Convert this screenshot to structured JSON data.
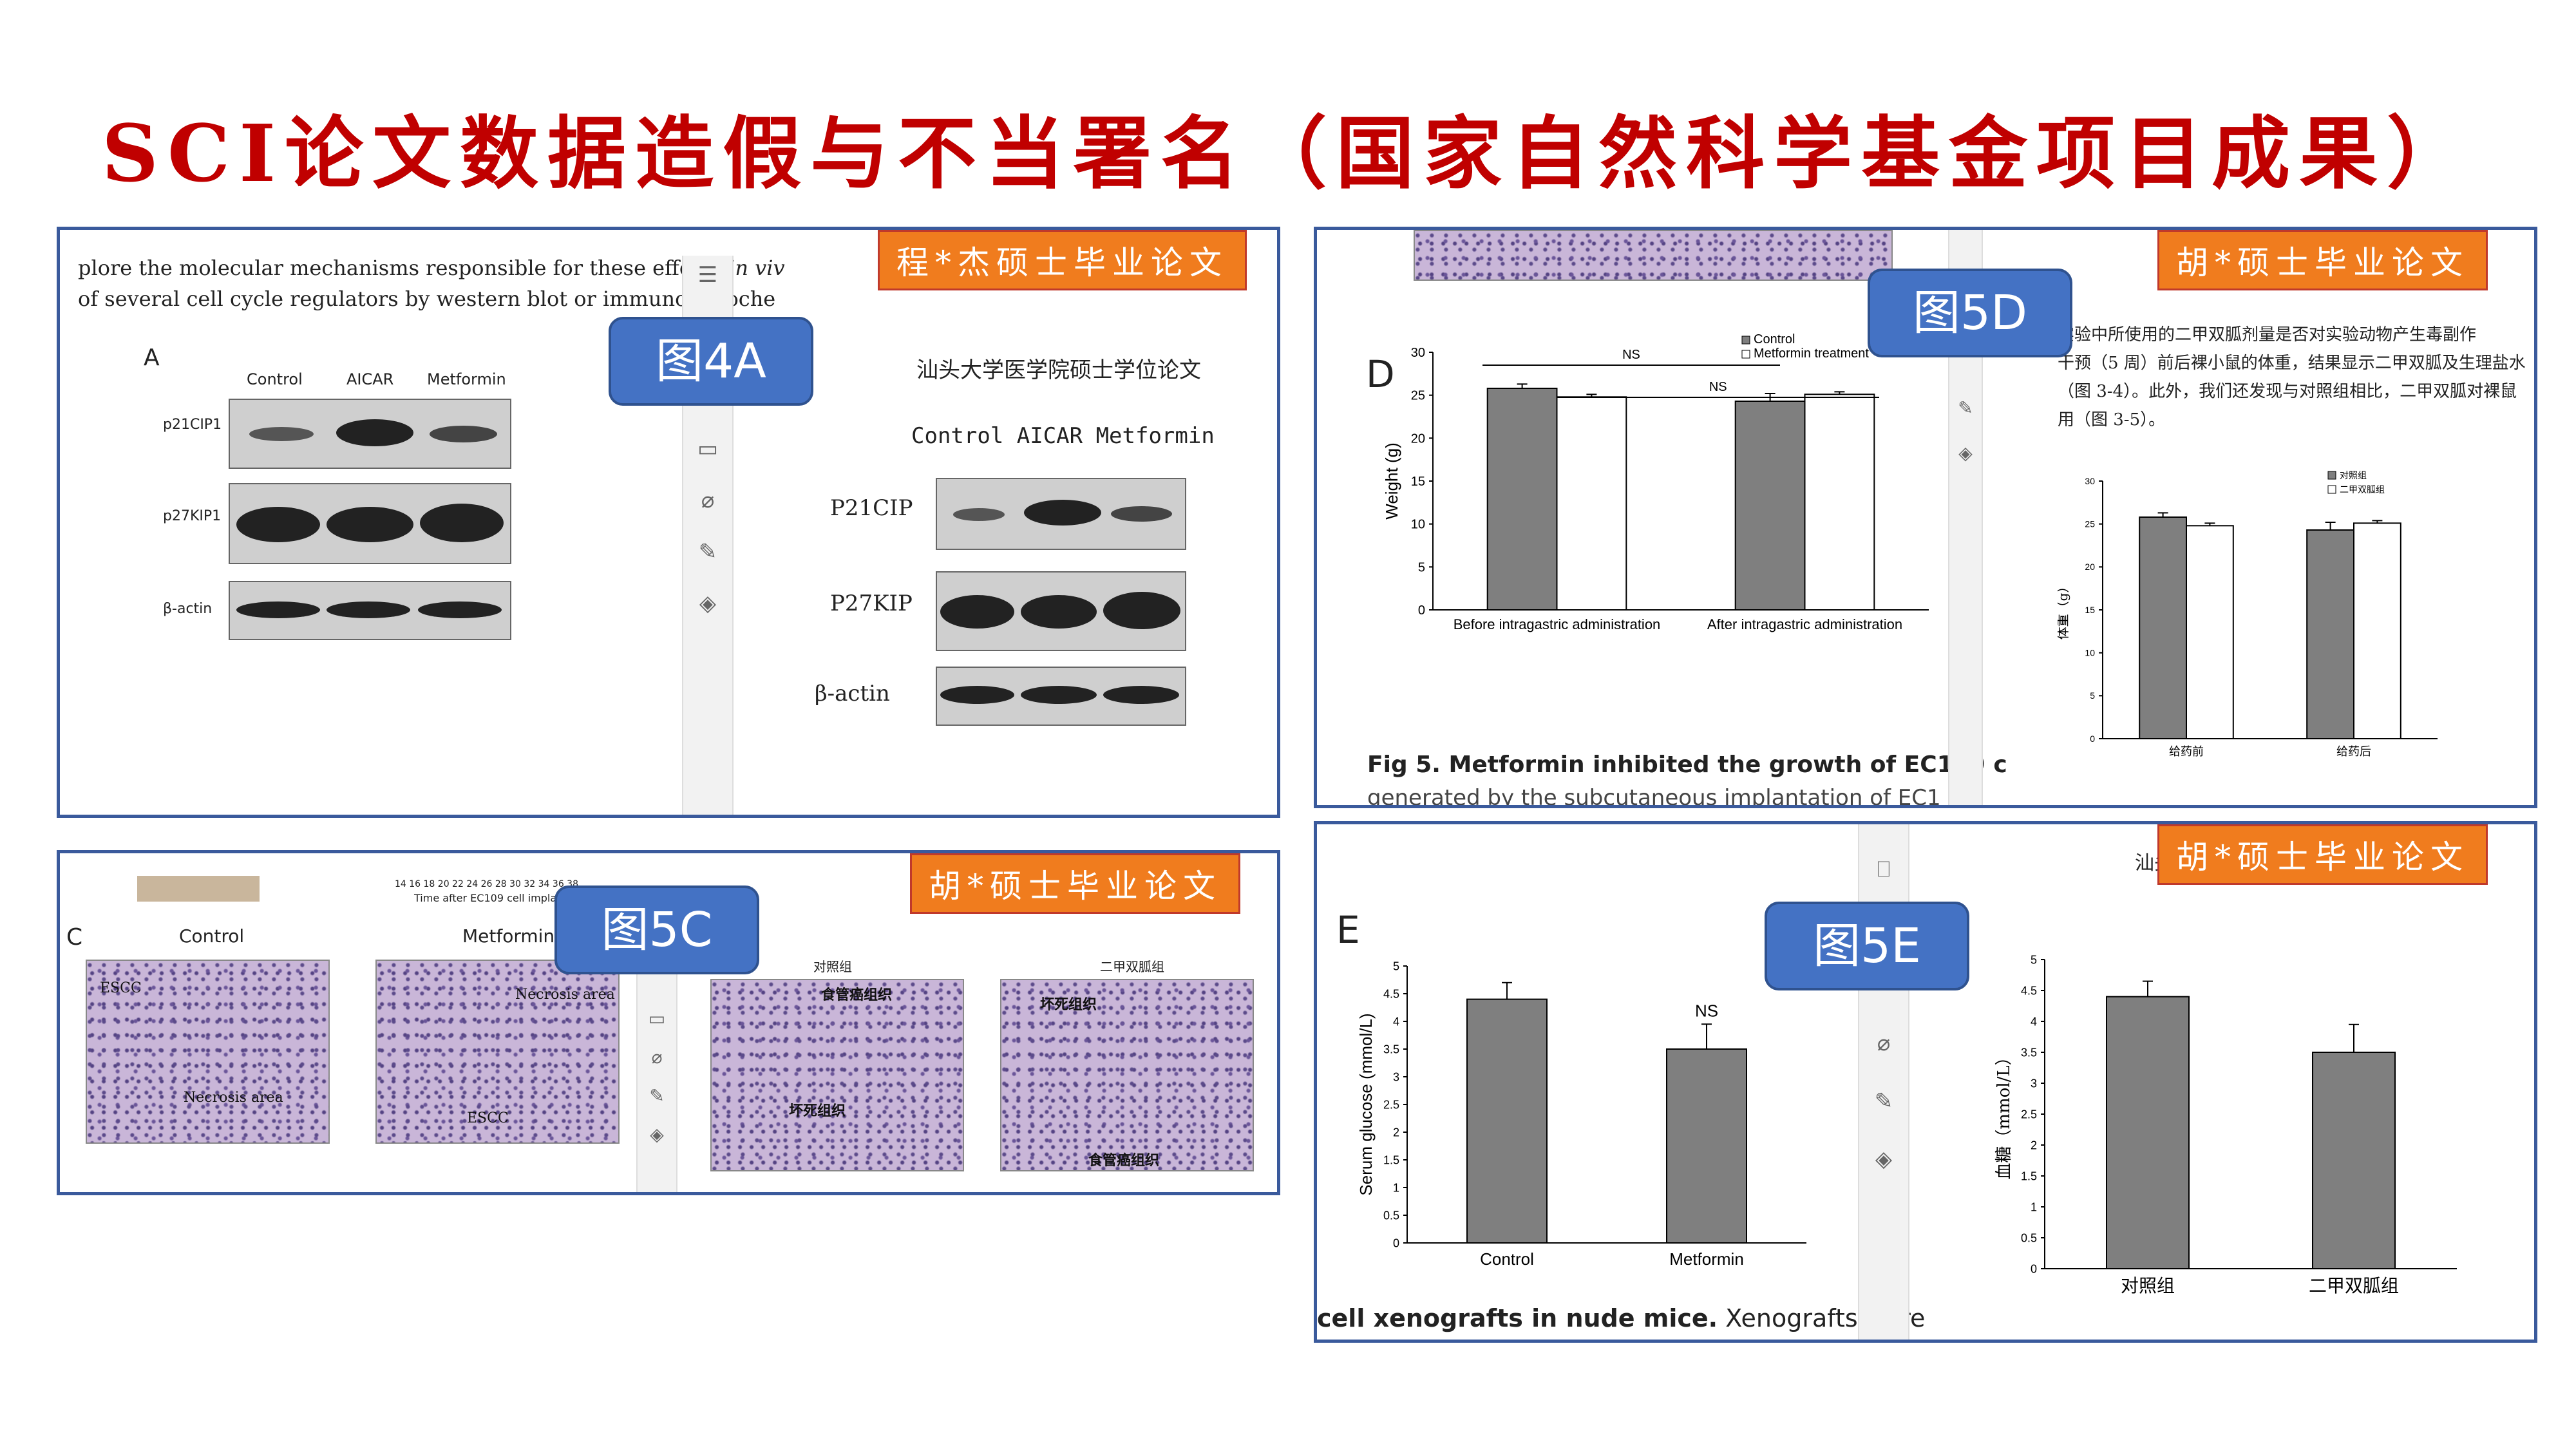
{
  "title": "SCI论文数据造假与不当署名（国家自然科学基金项目成果）",
  "colors": {
    "title": "#c00000",
    "panel_border": "#3a5a9c",
    "tag": "#f07c1e",
    "callout": "#4472c4",
    "bar_control": "#7f7f7f"
  },
  "panel_4a": {
    "text_line1_a": "plore the molecular mechanisms responsible for these effects ",
    "text_line1_b": "in viv",
    "text_line2": "of several cell cycle regulators by western blot or immunohistoche",
    "panel_letter": "A",
    "cols": [
      "Control",
      "AICAR",
      "Metformin"
    ],
    "rows": [
      "p21CIP1",
      "p27KIP1",
      "β-actin"
    ],
    "callout": "图4A",
    "tag": "程*杰硕士毕业论文",
    "thesis_header": "汕头大学医学院硕士学位论文",
    "thesis_cols": "Control AICAR Metformin",
    "thesis_rows": [
      "P21CIP",
      "P27KIP",
      "β-actin"
    ]
  },
  "panel_5d": {
    "panel_letter": "D",
    "callout": "图5D",
    "tag": "胡*硕士毕业论文",
    "caption": "Fig 5.  Metformin inhibited the growth of EC109 c",
    "caption2": "generated by the subcutaneous implantation of EC1",
    "thesis_text": [
      "实验中所使用的二甲双胍剂量是否对实验动物产生毒副作",
      "干预（5 周）前后裸小鼠的体重，结果显示二甲双胍及生理盐水",
      "（图 3-4）。此外，我们还发现与对照组相比，二甲双胍对裸鼠",
      "用（图 3-5）。"
    ]
  },
  "panel_5c": {
    "time_ticks": "14 16 18 20 22 24 26 28 30 32 34 36 38",
    "time_label": "Time after EC109 cell implanta",
    "panel_letter": "C",
    "cols": [
      "Control",
      "Metformin"
    ],
    "labels_left": [
      "ESCC",
      "Necrosis area",
      "Necrosis area",
      "ESCC"
    ],
    "thesis_cols": [
      "对照组",
      "二甲双胍组"
    ],
    "thesis_labels": [
      "食管癌组织",
      "坏死组织",
      "坏死组织",
      "食管癌组织"
    ],
    "callout": "图5C",
    "tag": "胡*硕士毕业论文"
  },
  "panel_5e": {
    "panel_letter": "E",
    "callout": "图5E",
    "tag": "胡*硕士毕业论文",
    "caption_bold": "cell xenografts in nude mice.",
    "caption_rest": " Xenografts were",
    "thesis_header": "汕头"
  },
  "chart_data": [
    {
      "type": "bar",
      "categories": [
        "Before intragastric administration",
        "After intragastric administration"
      ],
      "series": [
        {
          "name": "Control",
          "values": [
            25.8,
            24.3
          ],
          "errors": [
            0.5,
            0.9
          ]
        },
        {
          "name": "Metformin treatment",
          "values": [
            24.8,
            25.1
          ],
          "errors": [
            0.3,
            0.3
          ]
        }
      ],
      "ylabel": "Weight (g)",
      "ylim": [
        0,
        30
      ],
      "yticks": [
        0,
        5,
        10,
        15,
        20,
        25,
        30
      ],
      "annotations": [
        "NS",
        "NS"
      ],
      "legend": "top-right"
    },
    {
      "type": "bar",
      "categories": [
        "给药前",
        "给药后"
      ],
      "series": [
        {
          "name": "对照组",
          "values": [
            25.8,
            24.3
          ],
          "errors": [
            0.5,
            0.9
          ]
        },
        {
          "name": "二甲双胍组",
          "values": [
            24.8,
            25.1
          ],
          "errors": [
            0.3,
            0.3
          ]
        }
      ],
      "ylabel": "体重（g）",
      "ylim": [
        0,
        30
      ],
      "yticks": [
        0,
        5,
        10,
        15,
        20,
        25,
        30
      ],
      "legend": "top-right"
    },
    {
      "type": "bar",
      "categories": [
        "Control",
        "Metformin"
      ],
      "values": [
        4.4,
        3.5
      ],
      "errors": [
        0.3,
        0.45
      ],
      "ylabel": "Serum glucose (mmol/L)",
      "ylim": [
        0,
        5
      ],
      "yticks": [
        0,
        0.5,
        1,
        1.5,
        2,
        2.5,
        3,
        3.5,
        4,
        4.5,
        5
      ],
      "annotations": [
        "NS"
      ]
    },
    {
      "type": "bar",
      "categories": [
        "对照组",
        "二甲双胍组"
      ],
      "values": [
        4.4,
        3.5
      ],
      "errors": [
        0.25,
        0.45
      ],
      "ylabel": "血糖（mmol/L）",
      "ylim": [
        0,
        5
      ],
      "yticks": [
        0,
        0.5,
        1,
        1.5,
        2,
        2.5,
        3,
        3.5,
        4,
        4.5,
        5
      ]
    }
  ]
}
